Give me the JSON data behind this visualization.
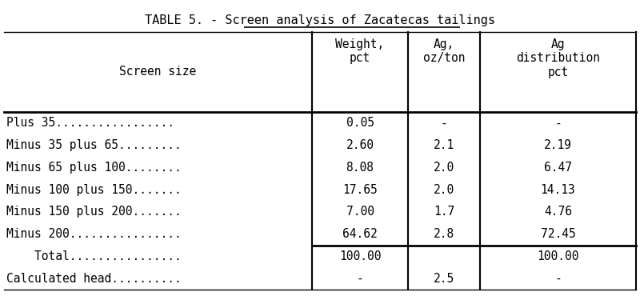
{
  "title_prefix": "TABLE 5. - ",
  "title_underlined": "Screen analysis of Zacatecas tailings",
  "col_headers_0": "Screen size",
  "col_headers_1": "Weight,\npct",
  "col_headers_2": "Ag,\noz/ton",
  "col_headers_3": "Ag\ndistribution\npct",
  "rows": [
    [
      "Plus 35.................",
      "0.05",
      "-",
      "-"
    ],
    [
      "Minus 35 plus 65.........",
      "2.60",
      "2.1",
      "2.19"
    ],
    [
      "Minus 65 plus 100........",
      "8.08",
      "2.0",
      "6.47"
    ],
    [
      "Minus 100 plus 150.......",
      "17.65",
      "2.0",
      "14.13"
    ],
    [
      "Minus 150 plus 200.......",
      "7.00",
      "1.7",
      "4.76"
    ],
    [
      "Minus 200................",
      "64.62",
      "2.8",
      "72.45"
    ],
    [
      "    Total................",
      "100.00",
      "",
      "100.00"
    ],
    [
      "Calculated head..........",
      "-",
      "2.5",
      "-"
    ]
  ],
  "bg_color": "#ffffff",
  "font_family": "monospace",
  "title_fontsize": 11,
  "body_fontsize": 10.5
}
